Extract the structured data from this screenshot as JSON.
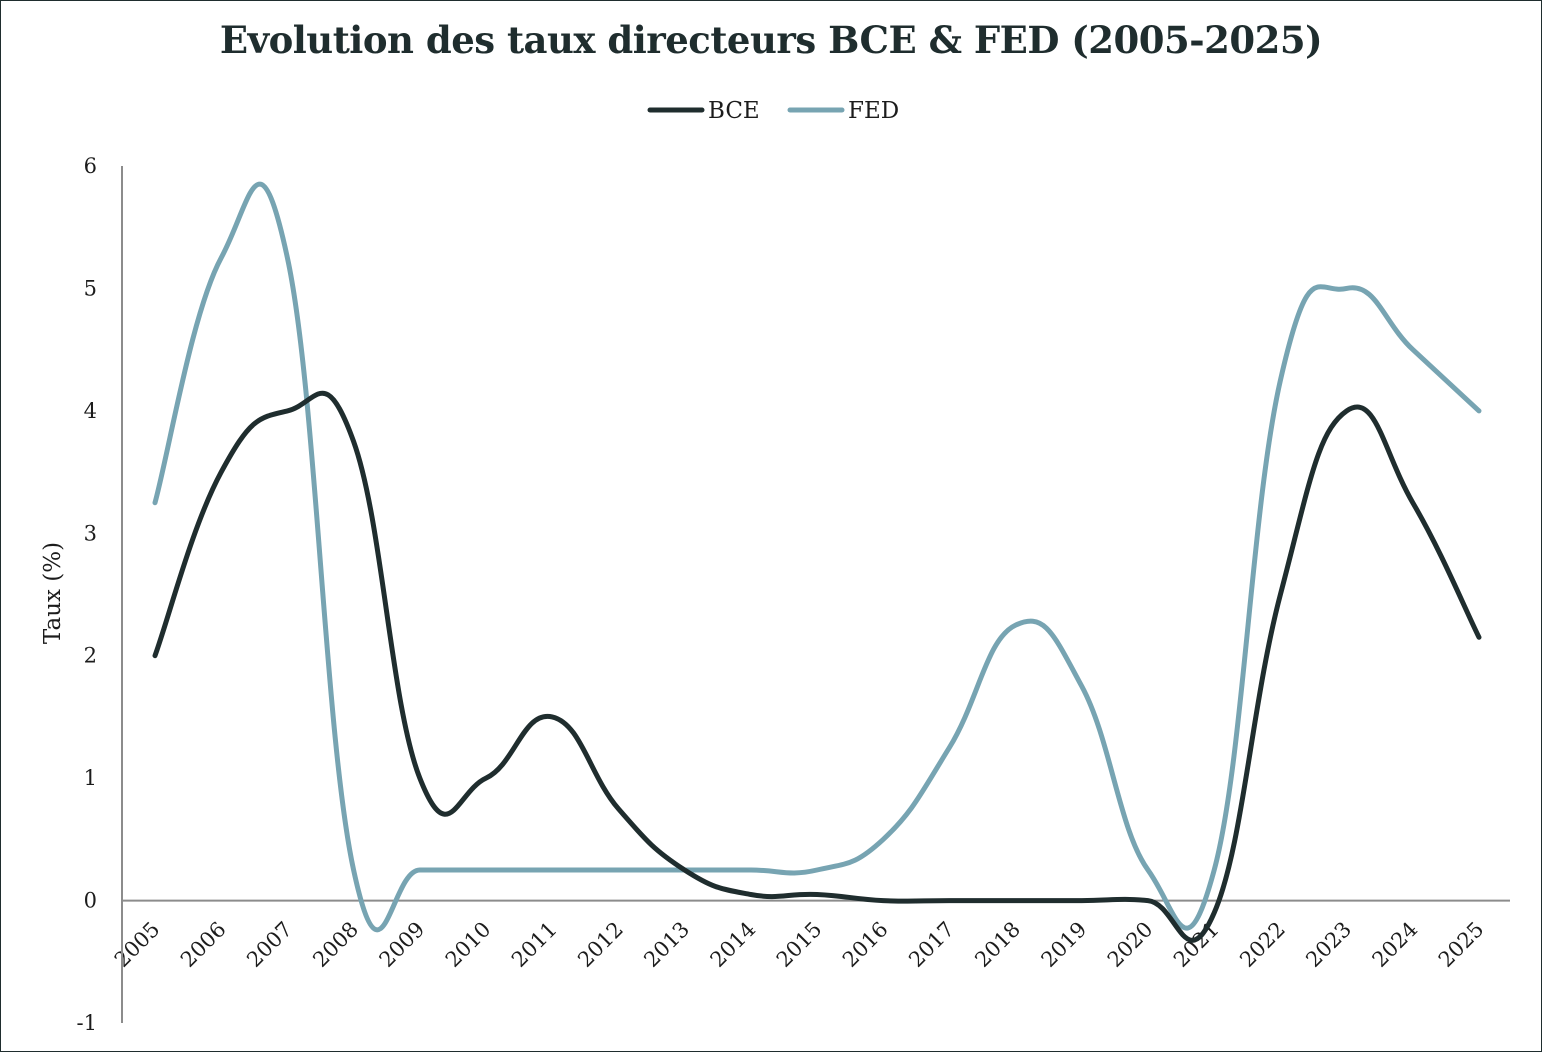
{
  "chart_data": {
    "type": "line",
    "title": "Evolution des taux directeurs BCE & FED (2005-2025)",
    "xlabel": "",
    "ylabel": "Taux (%)",
    "ylim": [
      -1,
      6
    ],
    "yticks": [
      -1,
      0,
      1,
      2,
      3,
      4,
      5,
      6
    ],
    "grid": false,
    "legend_position": "top-center",
    "categories": [
      "2005",
      "2006",
      "2007",
      "2008",
      "2009",
      "2010",
      "2011",
      "2012",
      "2013",
      "2014",
      "2015",
      "2016",
      "2017",
      "2018",
      "2019",
      "2020",
      "2021",
      "2022",
      "2023",
      "2024",
      "2025"
    ],
    "series": [
      {
        "name": "BCE",
        "color": "#1f2d2e",
        "values": [
          2.0,
          3.5,
          4.0,
          3.75,
          1.0,
          1.0,
          1.5,
          0.75,
          0.25,
          0.05,
          0.05,
          0.0,
          0.0,
          0.0,
          0.0,
          0.0,
          -0.1,
          2.5,
          4.0,
          3.25,
          2.15
        ]
      },
      {
        "name": "FED",
        "color": "#77a4b2",
        "values": [
          3.25,
          5.25,
          5.25,
          0.25,
          0.25,
          0.25,
          0.25,
          0.25,
          0.25,
          0.25,
          0.25,
          0.5,
          1.25,
          2.25,
          1.75,
          0.25,
          0.25,
          4.25,
          5.0,
          4.5,
          4.0
        ]
      }
    ]
  }
}
